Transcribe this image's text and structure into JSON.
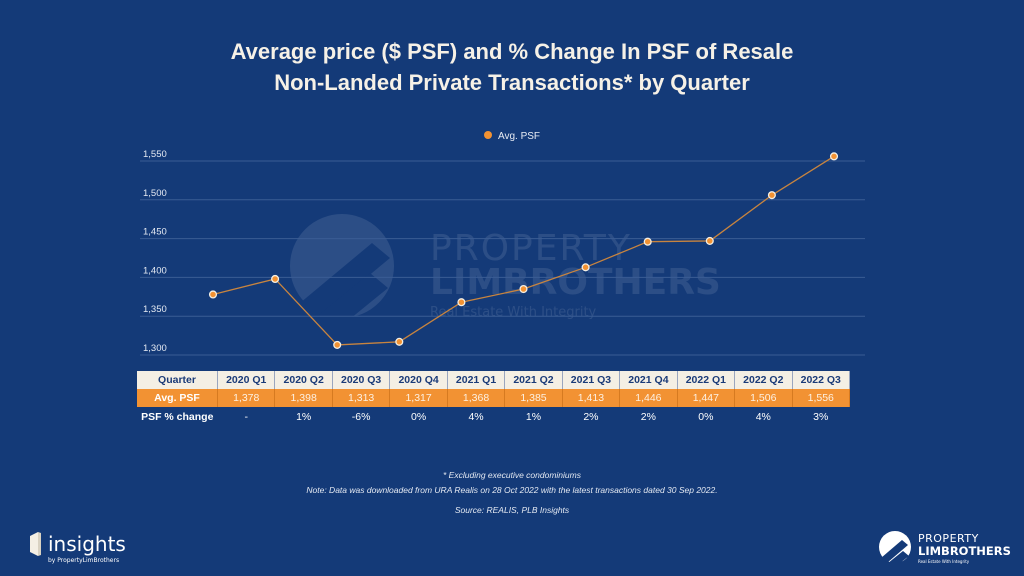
{
  "title_line1": "Average price ($ PSF) and % Change In PSF of Resale",
  "title_line2": "Non-Landed Private Transactions* by Quarter",
  "legend_label": "Avg. PSF",
  "colors": {
    "background": "#143a78",
    "line": "#c8843f",
    "marker": "#f29233",
    "table_header": "#f4efe4",
    "table_psf": "#f29233"
  },
  "chart_data": {
    "type": "line",
    "title": "Average price ($ PSF) and % Change In PSF of Resale Non-Landed Private Transactions* by Quarter",
    "categories": [
      "2020 Q1",
      "2020 Q2",
      "2020 Q3",
      "2020 Q4",
      "2021 Q1",
      "2021 Q2",
      "2021 Q3",
      "2021 Q4",
      "2022 Q1",
      "2022 Q2",
      "2022 Q3"
    ],
    "series": [
      {
        "name": "Avg. PSF",
        "values": [
          1378,
          1398,
          1313,
          1317,
          1368,
          1385,
          1413,
          1446,
          1447,
          1506,
          1556
        ]
      }
    ],
    "yticks": [
      "1,300",
      "1,350",
      "1,400",
      "1,450",
      "1,500",
      "1,550"
    ],
    "ytick_values": [
      1300,
      1350,
      1400,
      1450,
      1500,
      1550
    ],
    "ylim": [
      1300,
      1550
    ],
    "xlabel": "",
    "ylabel": "",
    "grid": true,
    "legend": "top-center"
  },
  "table": {
    "header_label": "Quarter",
    "psf_label": "Avg. PSF",
    "change_label": "PSF % change",
    "quarters": [
      "2020 Q1",
      "2020 Q2",
      "2020 Q3",
      "2020 Q4",
      "2021 Q1",
      "2021 Q2",
      "2021 Q3",
      "2021 Q4",
      "2022 Q1",
      "2022 Q2",
      "2022 Q3"
    ],
    "psf": [
      "1,378",
      "1,398",
      "1,313",
      "1,317",
      "1,368",
      "1,385",
      "1,413",
      "1,446",
      "1,447",
      "1,506",
      "1,556"
    ],
    "change": [
      "-",
      "1%",
      "-6%",
      "0%",
      "4%",
      "1%",
      "2%",
      "2%",
      "0%",
      "4%",
      "3%"
    ]
  },
  "footnotes": {
    "excluding": "* Excluding executive condominiums",
    "note": "Note: Data was downloaded from URA Realis on 28 Oct 2022 with the latest transactions dated 30 Sep 2022.",
    "source": "Source: REALIS, PLB Insights"
  },
  "watermark": {
    "line1": "PROPERTY",
    "line2": "LIMBROTHERS",
    "tagline": "Real Estate With Integrity"
  },
  "logo_left": {
    "name": "insights",
    "sub": "by PropertyLimBrothers"
  },
  "logo_right": {
    "line1": "PROPERTY",
    "line2": "LIMBROTHERS",
    "tagline": "Real Estate With Integrity"
  }
}
